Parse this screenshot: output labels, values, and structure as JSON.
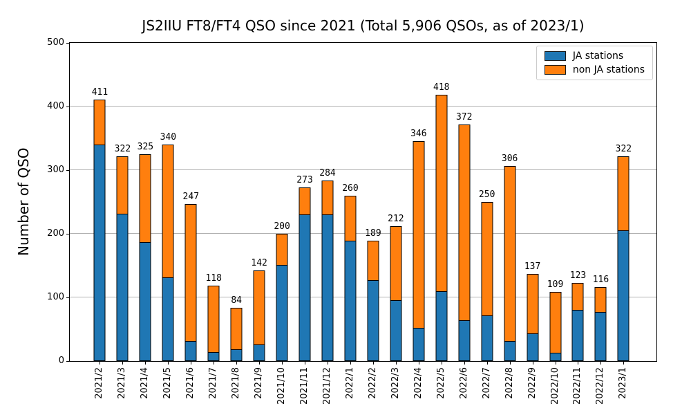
{
  "title": "JS2IIU FT8/FT4 QSO since 2021 (Total 5,906 QSOs, as of 2023/1)",
  "chart_data": {
    "type": "bar",
    "stacked": true,
    "title": "JS2IIU FT8/FT4 QSO since 2021 (Total 5,906 QSOs, as of 2023/1)",
    "xlabel": "",
    "ylabel": "Number of QSO",
    "ylim": [
      0,
      500
    ],
    "yticks": [
      0,
      100,
      200,
      300,
      400,
      500
    ],
    "grid": true,
    "grid_color": "#b0b0b0",
    "edge_color": "#000000",
    "legend_position": "upper right",
    "categories": [
      "2021/2",
      "2021/3",
      "2021/4",
      "2021/5",
      "2021/6",
      "2021/7",
      "2021/8",
      "2021/9",
      "2021/10",
      "2021/11",
      "2021/12",
      "2022/1",
      "2022/2",
      "2022/3",
      "2022/4",
      "2022/5",
      "2022/6",
      "2022/7",
      "2022/8",
      "2022/9",
      "2022/10",
      "2022/11",
      "2022/12",
      "2023/1"
    ],
    "series": [
      {
        "name": "JA stations",
        "color": "#1f77b4",
        "values": [
          340,
          231,
          187,
          132,
          31,
          14,
          19,
          26,
          151,
          230,
          230,
          189,
          127,
          96,
          52,
          110,
          64,
          72,
          32,
          43,
          13,
          80,
          77,
          205
        ]
      },
      {
        "name": "non JA stations",
        "color": "#ff7f0e",
        "values": [
          71,
          91,
          138,
          208,
          216,
          104,
          65,
          116,
          49,
          43,
          54,
          71,
          62,
          116,
          294,
          308,
          308,
          178,
          274,
          94,
          96,
          43,
          39,
          117
        ]
      }
    ],
    "totals": [
      411,
      322,
      325,
      340,
      247,
      118,
      84,
      142,
      200,
      273,
      284,
      260,
      189,
      212,
      346,
      418,
      372,
      250,
      306,
      137,
      109,
      123,
      116,
      322
    ]
  },
  "legend": {
    "items": [
      {
        "label": "JA stations",
        "color": "#1f77b4"
      },
      {
        "label": "non JA stations",
        "color": "#ff7f0e"
      }
    ]
  }
}
